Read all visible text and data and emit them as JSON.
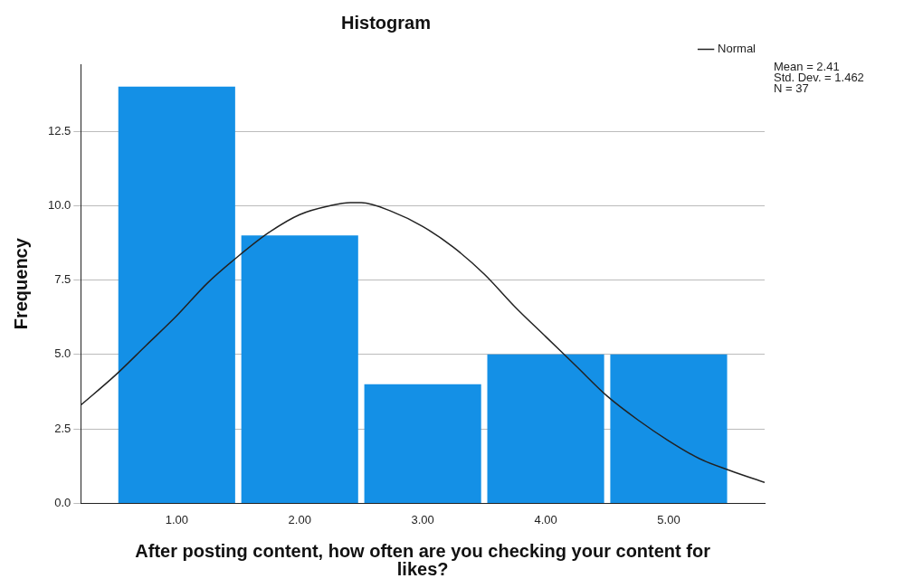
{
  "chart_data": {
    "type": "histogram",
    "title": "Histogram",
    "xlabel": "After posting content, how often are you checking your content for likes?",
    "ylabel": "Frequency",
    "bins": [
      0.5,
      1.5,
      2.5,
      3.5,
      4.5,
      5.5
    ],
    "values": [
      14,
      9,
      4,
      5,
      5
    ],
    "color": "#1490e6",
    "series": [
      {
        "name": "Normal",
        "type": "line",
        "color": "#222222",
        "x": [
          0.22,
          0.5,
          0.75,
          1.0,
          1.25,
          1.5,
          1.75,
          2.0,
          2.25,
          2.41,
          2.5,
          2.75,
          3.0,
          3.25,
          3.5,
          3.75,
          4.0,
          4.25,
          4.5,
          4.75,
          5.0,
          5.25,
          5.5,
          5.78
        ],
        "values": [
          3.3,
          4.3,
          5.3,
          6.3,
          7.4,
          8.3,
          9.1,
          9.7,
          10.0,
          10.1,
          10.1,
          9.8,
          9.3,
          8.6,
          7.7,
          6.6,
          5.6,
          4.6,
          3.6,
          2.8,
          2.1,
          1.5,
          1.1,
          0.7
        ]
      }
    ],
    "xlim": [
      0.22,
      5.78
    ],
    "xticks": [
      {
        "value": 1,
        "label": "1.00"
      },
      {
        "value": 2,
        "label": "2.00"
      },
      {
        "value": 3,
        "label": "3.00"
      },
      {
        "value": 4,
        "label": "4.00"
      },
      {
        "value": 5,
        "label": "5.00"
      }
    ],
    "ylim": [
      0,
      14.75
    ],
    "yticks": [
      {
        "value": 0,
        "label": "0.0"
      },
      {
        "value": 2.5,
        "label": "2.5"
      },
      {
        "value": 5,
        "label": "5.0"
      },
      {
        "value": 7.5,
        "label": "7.5"
      },
      {
        "value": 10,
        "label": "10.0"
      },
      {
        "value": 12.5,
        "label": "12.5"
      }
    ],
    "grid": "y",
    "legend": "top right",
    "marker": "none",
    "annotations": [
      "Mean = 2.41",
      "Std. Dev. = 1.462",
      "N = 37"
    ]
  }
}
